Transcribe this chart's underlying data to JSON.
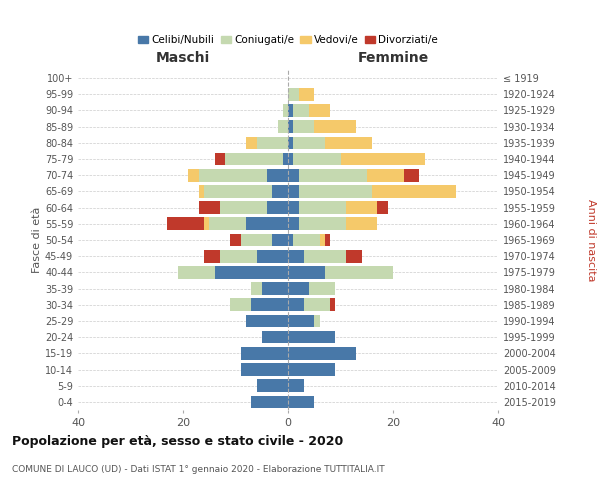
{
  "age_groups": [
    "0-4",
    "5-9",
    "10-14",
    "15-19",
    "20-24",
    "25-29",
    "30-34",
    "35-39",
    "40-44",
    "45-49",
    "50-54",
    "55-59",
    "60-64",
    "65-69",
    "70-74",
    "75-79",
    "80-84",
    "85-89",
    "90-94",
    "95-99",
    "100+"
  ],
  "birth_years": [
    "2015-2019",
    "2010-2014",
    "2005-2009",
    "2000-2004",
    "1995-1999",
    "1990-1994",
    "1985-1989",
    "1980-1984",
    "1975-1979",
    "1970-1974",
    "1965-1969",
    "1960-1964",
    "1955-1959",
    "1950-1954",
    "1945-1949",
    "1940-1944",
    "1935-1939",
    "1930-1934",
    "1925-1929",
    "1920-1924",
    "≤ 1919"
  ],
  "male": {
    "celibi": [
      7,
      6,
      9,
      9,
      5,
      8,
      7,
      5,
      14,
      6,
      3,
      8,
      4,
      3,
      4,
      1,
      0,
      0,
      0,
      0,
      0
    ],
    "coniugati": [
      0,
      0,
      0,
      0,
      0,
      0,
      4,
      2,
      7,
      7,
      6,
      7,
      9,
      13,
      13,
      11,
      6,
      2,
      1,
      0,
      0
    ],
    "vedovi": [
      0,
      0,
      0,
      0,
      0,
      0,
      0,
      0,
      0,
      0,
      0,
      1,
      0,
      1,
      2,
      0,
      2,
      0,
      0,
      0,
      0
    ],
    "divorziati": [
      0,
      0,
      0,
      0,
      0,
      0,
      0,
      0,
      0,
      3,
      2,
      7,
      4,
      0,
      0,
      2,
      0,
      0,
      0,
      0,
      0
    ]
  },
  "female": {
    "nubili": [
      5,
      3,
      9,
      13,
      9,
      5,
      3,
      4,
      7,
      3,
      1,
      2,
      2,
      2,
      2,
      1,
      1,
      1,
      1,
      0,
      0
    ],
    "coniugate": [
      0,
      0,
      0,
      0,
      0,
      1,
      5,
      5,
      13,
      8,
      5,
      9,
      9,
      14,
      13,
      9,
      6,
      4,
      3,
      2,
      0
    ],
    "vedove": [
      0,
      0,
      0,
      0,
      0,
      0,
      0,
      0,
      0,
      0,
      1,
      6,
      6,
      16,
      7,
      16,
      9,
      8,
      4,
      3,
      0
    ],
    "divorziate": [
      0,
      0,
      0,
      0,
      0,
      0,
      1,
      0,
      0,
      3,
      1,
      0,
      2,
      0,
      3,
      0,
      0,
      0,
      0,
      0,
      0
    ]
  },
  "colors": {
    "celibi_nubili": "#4878a8",
    "coniugati": "#c5d9b0",
    "vedovi": "#f5c96a",
    "divorziati": "#c0392b"
  },
  "title": "Popolazione per età, sesso e stato civile - 2020",
  "subtitle": "COMUNE DI LAUCO (UD) - Dati ISTAT 1° gennaio 2020 - Elaborazione TUTTITALIA.IT",
  "xlabel_left": "Maschi",
  "xlabel_right": "Femmine",
  "ylabel_left": "Fasce di età",
  "ylabel_right": "Anni di nascita",
  "xlim": 40,
  "bg_color": "#ffffff",
  "grid_color": "#cccccc"
}
